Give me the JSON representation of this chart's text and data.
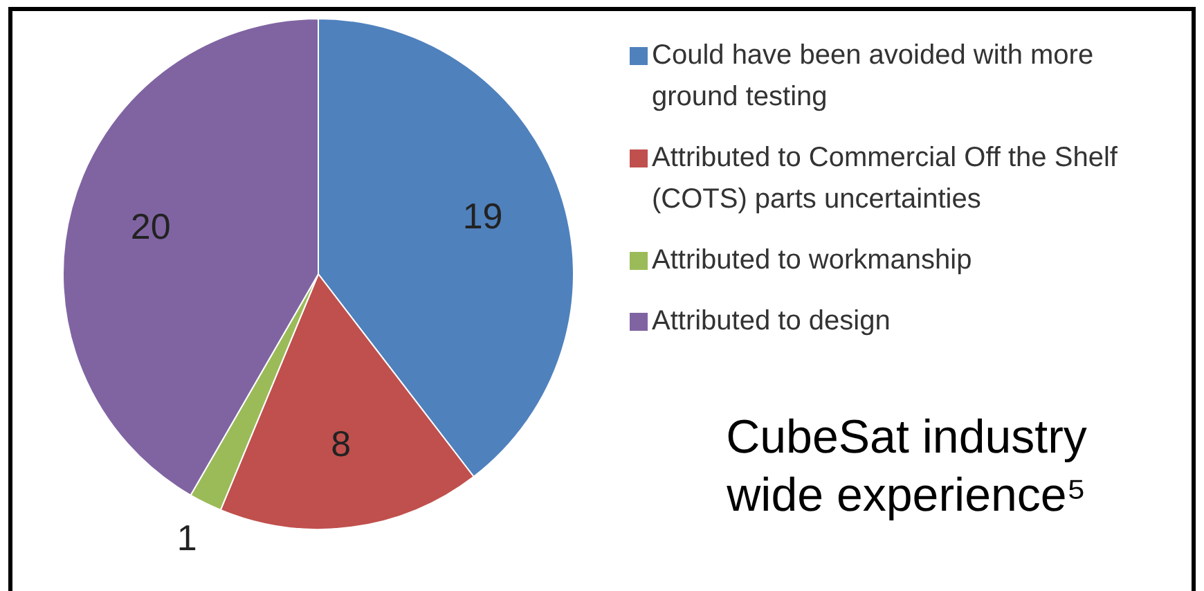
{
  "chart_data": {
    "type": "pie",
    "categories": [
      "Could have been avoided with more ground testing",
      "Attributed to Commercial Off the Shelf (COTS) parts uncertainties",
      "Attributed to workmanship",
      "Attributed to design"
    ],
    "values": [
      19,
      8,
      1,
      20
    ],
    "colors": [
      "#4f81bd",
      "#c0504d",
      "#9bbb59",
      "#8064a2"
    ],
    "data_labels": true,
    "legend": "right",
    "annotations": [
      "CubeSat industry wide experience⁵"
    ]
  }
}
